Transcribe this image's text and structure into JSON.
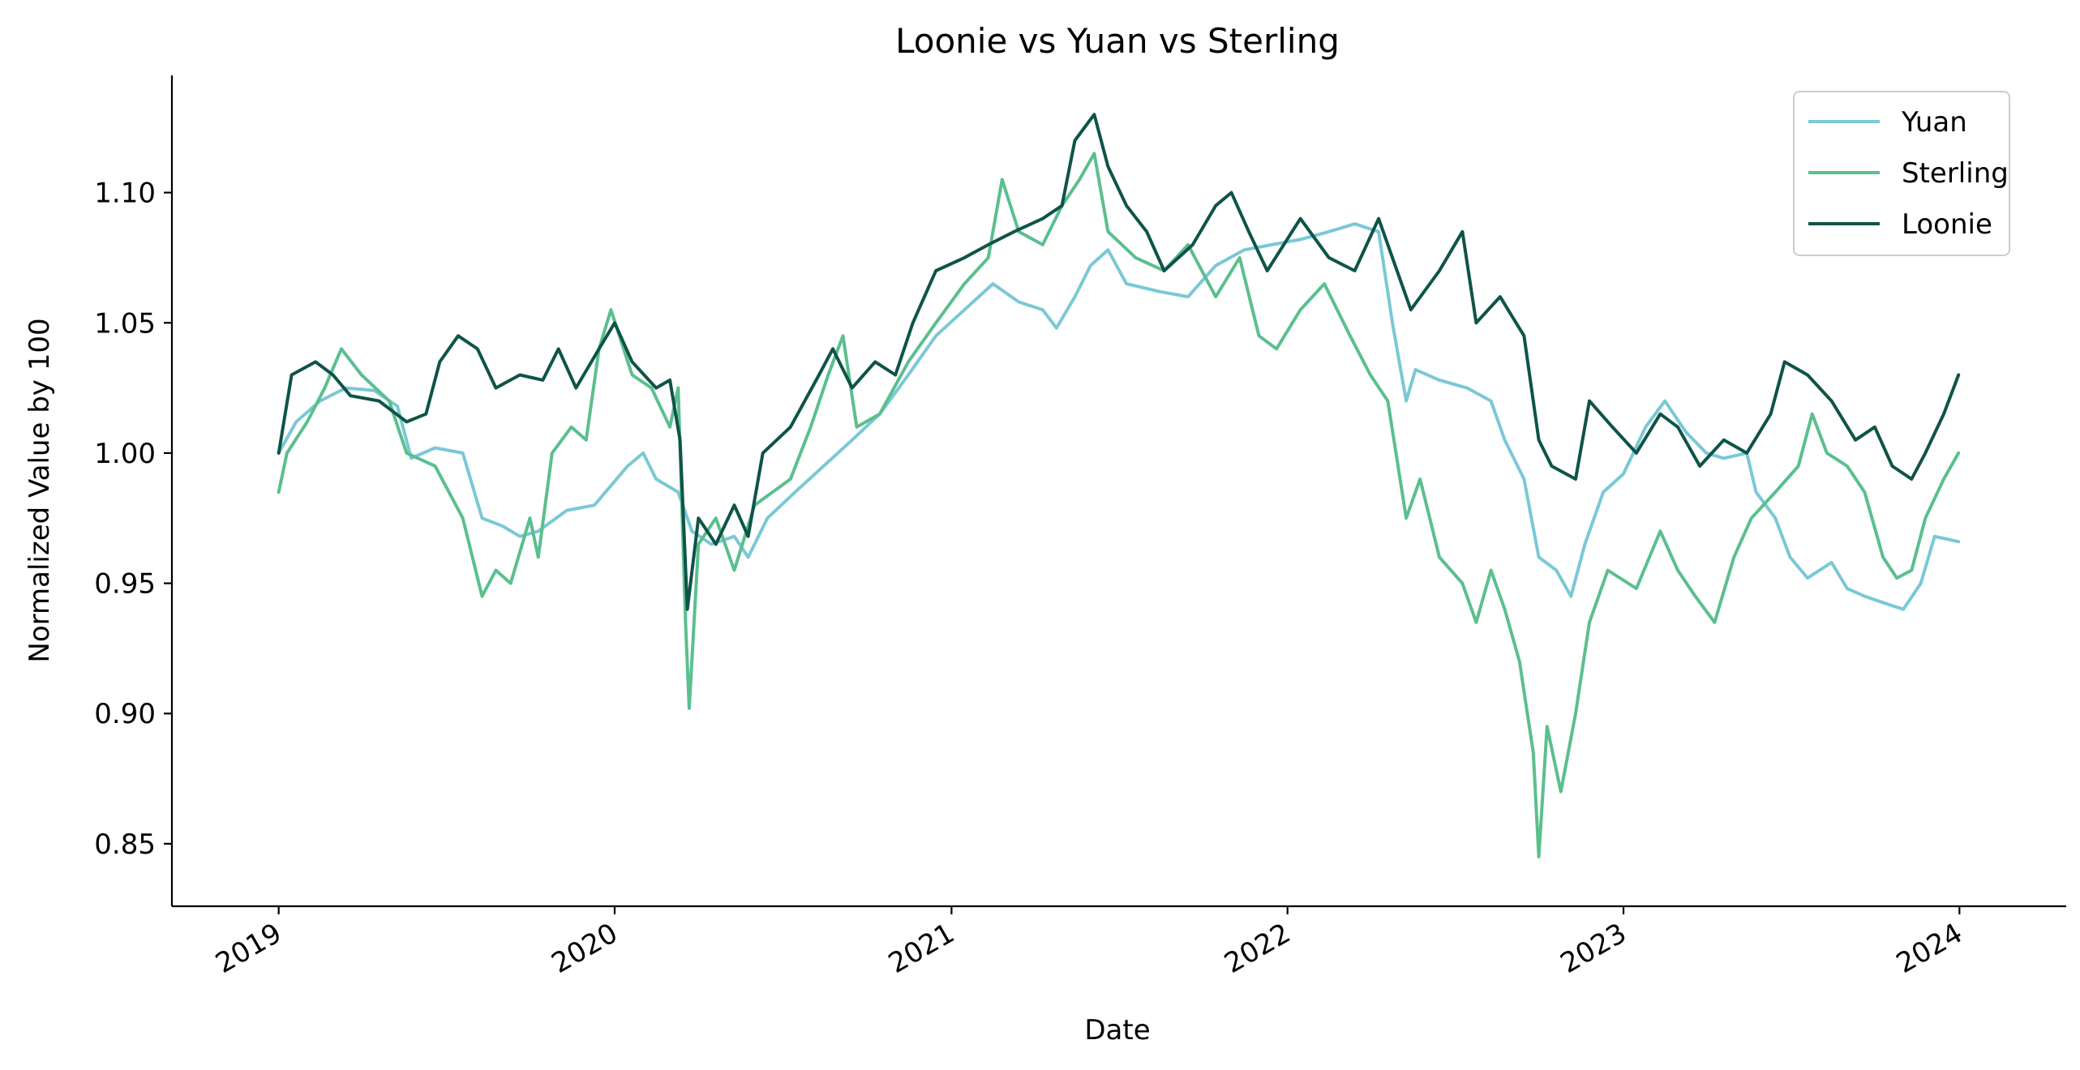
{
  "chart_data": {
    "type": "line",
    "title": "Loonie vs Yuan vs Sterling",
    "xlabel": "Date",
    "ylabel": "Normalized Value by 100",
    "x_axis": {
      "type": "date",
      "range": [
        "2018-09-07",
        "2024-04-26"
      ],
      "ticks": [
        "2019-01-01",
        "2020-01-01",
        "2021-01-01",
        "2022-01-01",
        "2023-01-01",
        "2024-01-01"
      ],
      "tick_labels": [
        "2019",
        "2020",
        "2021",
        "2022",
        "2023",
        "2024"
      ]
    },
    "y_axis": {
      "range": [
        0.826,
        1.145
      ],
      "ticks": [
        0.85,
        0.9,
        0.95,
        1.0,
        1.05,
        1.1
      ],
      "tick_labels": [
        "0.85",
        "0.90",
        "0.95",
        "1.00",
        "1.05",
        "1.10"
      ]
    },
    "grid": false,
    "legend_position": "top-right",
    "series": [
      {
        "name": "Yuan",
        "color": "#7bc8d6",
        "points": [
          [
            "2019-01-01",
            1.0
          ],
          [
            "2019-01-20",
            1.012
          ],
          [
            "2019-02-15",
            1.02
          ],
          [
            "2019-03-15",
            1.025
          ],
          [
            "2019-04-15",
            1.024
          ],
          [
            "2019-05-10",
            1.018
          ],
          [
            "2019-05-25",
            0.998
          ],
          [
            "2019-06-20",
            1.002
          ],
          [
            "2019-07-20",
            1.0
          ],
          [
            "2019-08-10",
            0.975
          ],
          [
            "2019-09-01",
            0.972
          ],
          [
            "2019-09-20",
            0.968
          ],
          [
            "2019-10-10",
            0.97
          ],
          [
            "2019-11-10",
            0.978
          ],
          [
            "2019-12-10",
            0.98
          ],
          [
            "2020-01-15",
            0.995
          ],
          [
            "2020-02-01",
            1.0
          ],
          [
            "2020-02-15",
            0.99
          ],
          [
            "2020-03-10",
            0.985
          ],
          [
            "2020-03-25",
            0.97
          ],
          [
            "2020-04-15",
            0.965
          ],
          [
            "2020-05-10",
            0.968
          ],
          [
            "2020-05-25",
            0.96
          ],
          [
            "2020-06-15",
            0.975
          ],
          [
            "2020-07-15",
            0.985
          ],
          [
            "2020-08-15",
            0.995
          ],
          [
            "2020-09-15",
            1.005
          ],
          [
            "2020-10-15",
            1.015
          ],
          [
            "2020-11-15",
            1.03
          ],
          [
            "2020-12-15",
            1.045
          ],
          [
            "2021-01-15",
            1.055
          ],
          [
            "2021-02-15",
            1.065
          ],
          [
            "2021-03-15",
            1.058
          ],
          [
            "2021-04-10",
            1.055
          ],
          [
            "2021-04-25",
            1.048
          ],
          [
            "2021-05-15",
            1.06
          ],
          [
            "2021-06-01",
            1.072
          ],
          [
            "2021-06-20",
            1.078
          ],
          [
            "2021-07-10",
            1.065
          ],
          [
            "2021-08-15",
            1.062
          ],
          [
            "2021-09-15",
            1.06
          ],
          [
            "2021-10-15",
            1.072
          ],
          [
            "2021-11-15",
            1.078
          ],
          [
            "2021-12-15",
            1.08
          ],
          [
            "2022-01-15",
            1.082
          ],
          [
            "2022-02-15",
            1.085
          ],
          [
            "2022-03-15",
            1.088
          ],
          [
            "2022-04-10",
            1.085
          ],
          [
            "2022-04-25",
            1.05
          ],
          [
            "2022-05-10",
            1.02
          ],
          [
            "2022-05-20",
            1.032
          ],
          [
            "2022-06-15",
            1.028
          ],
          [
            "2022-07-15",
            1.025
          ],
          [
            "2022-08-10",
            1.02
          ],
          [
            "2022-08-25",
            1.005
          ],
          [
            "2022-09-15",
            0.99
          ],
          [
            "2022-10-01",
            0.96
          ],
          [
            "2022-10-20",
            0.955
          ],
          [
            "2022-11-05",
            0.945
          ],
          [
            "2022-11-20",
            0.965
          ],
          [
            "2022-12-10",
            0.985
          ],
          [
            "2023-01-01",
            0.992
          ],
          [
            "2023-01-25",
            1.01
          ],
          [
            "2023-02-15",
            1.02
          ],
          [
            "2023-03-10",
            1.008
          ],
          [
            "2023-04-01",
            1.0
          ],
          [
            "2023-04-20",
            0.998
          ],
          [
            "2023-05-15",
            1.0
          ],
          [
            "2023-05-25",
            0.985
          ],
          [
            "2023-06-15",
            0.975
          ],
          [
            "2023-07-01",
            0.96
          ],
          [
            "2023-07-20",
            0.952
          ],
          [
            "2023-08-15",
            0.958
          ],
          [
            "2023-09-01",
            0.948
          ],
          [
            "2023-09-20",
            0.945
          ],
          [
            "2023-10-15",
            0.942
          ],
          [
            "2023-11-01",
            0.94
          ],
          [
            "2023-11-20",
            0.95
          ],
          [
            "2023-12-05",
            0.968
          ],
          [
            "2023-12-31",
            0.966
          ]
        ]
      },
      {
        "name": "Sterling",
        "color": "#5bbf8e",
        "points": [
          [
            "2019-01-01",
            0.985
          ],
          [
            "2019-01-10",
            1.0
          ],
          [
            "2019-02-01",
            1.012
          ],
          [
            "2019-02-20",
            1.025
          ],
          [
            "2019-03-10",
            1.04
          ],
          [
            "2019-04-01",
            1.03
          ],
          [
            "2019-05-01",
            1.02
          ],
          [
            "2019-05-20",
            1.0
          ],
          [
            "2019-06-20",
            0.995
          ],
          [
            "2019-07-20",
            0.975
          ],
          [
            "2019-08-10",
            0.945
          ],
          [
            "2019-08-25",
            0.955
          ],
          [
            "2019-09-10",
            0.95
          ],
          [
            "2019-10-01",
            0.975
          ],
          [
            "2019-10-10",
            0.96
          ],
          [
            "2019-10-25",
            1.0
          ],
          [
            "2019-11-15",
            1.01
          ],
          [
            "2019-12-01",
            1.005
          ],
          [
            "2019-12-15",
            1.04
          ],
          [
            "2019-12-28",
            1.055
          ],
          [
            "2020-01-20",
            1.03
          ],
          [
            "2020-02-10",
            1.025
          ],
          [
            "2020-03-01",
            1.01
          ],
          [
            "2020-03-10",
            1.025
          ],
          [
            "2020-03-18",
            0.935
          ],
          [
            "2020-03-22",
            0.902
          ],
          [
            "2020-04-01",
            0.965
          ],
          [
            "2020-04-20",
            0.975
          ],
          [
            "2020-05-10",
            0.955
          ],
          [
            "2020-06-01",
            0.98
          ],
          [
            "2020-07-10",
            0.99
          ],
          [
            "2020-08-01",
            1.01
          ],
          [
            "2020-08-20",
            1.03
          ],
          [
            "2020-09-05",
            1.045
          ],
          [
            "2020-09-20",
            1.01
          ],
          [
            "2020-10-15",
            1.015
          ],
          [
            "2020-11-15",
            1.035
          ],
          [
            "2020-12-15",
            1.05
          ],
          [
            "2021-01-15",
            1.065
          ],
          [
            "2021-02-10",
            1.075
          ],
          [
            "2021-02-25",
            1.105
          ],
          [
            "2021-03-15",
            1.085
          ],
          [
            "2021-04-10",
            1.08
          ],
          [
            "2021-05-01",
            1.095
          ],
          [
            "2021-05-20",
            1.105
          ],
          [
            "2021-06-05",
            1.115
          ],
          [
            "2021-06-20",
            1.085
          ],
          [
            "2021-07-20",
            1.075
          ],
          [
            "2021-08-20",
            1.07
          ],
          [
            "2021-09-15",
            1.08
          ],
          [
            "2021-10-15",
            1.06
          ],
          [
            "2021-11-10",
            1.075
          ],
          [
            "2021-12-01",
            1.045
          ],
          [
            "2021-12-20",
            1.04
          ],
          [
            "2022-01-15",
            1.055
          ],
          [
            "2022-02-10",
            1.065
          ],
          [
            "2022-03-10",
            1.045
          ],
          [
            "2022-04-01",
            1.03
          ],
          [
            "2022-04-20",
            1.02
          ],
          [
            "2022-05-10",
            0.975
          ],
          [
            "2022-05-25",
            0.99
          ],
          [
            "2022-06-15",
            0.96
          ],
          [
            "2022-07-10",
            0.95
          ],
          [
            "2022-07-25",
            0.935
          ],
          [
            "2022-08-10",
            0.955
          ],
          [
            "2022-08-25",
            0.94
          ],
          [
            "2022-09-10",
            0.92
          ],
          [
            "2022-09-25",
            0.885
          ],
          [
            "2022-10-01",
            0.845
          ],
          [
            "2022-10-10",
            0.895
          ],
          [
            "2022-10-25",
            0.87
          ],
          [
            "2022-11-10",
            0.9
          ],
          [
            "2022-11-25",
            0.935
          ],
          [
            "2022-12-15",
            0.955
          ],
          [
            "2023-01-15",
            0.948
          ],
          [
            "2023-02-10",
            0.97
          ],
          [
            "2023-03-01",
            0.955
          ],
          [
            "2023-03-20",
            0.945
          ],
          [
            "2023-04-10",
            0.935
          ],
          [
            "2023-05-01",
            0.96
          ],
          [
            "2023-05-20",
            0.975
          ],
          [
            "2023-06-15",
            0.985
          ],
          [
            "2023-07-10",
            0.995
          ],
          [
            "2023-07-25",
            1.015
          ],
          [
            "2023-08-10",
            1.0
          ],
          [
            "2023-09-01",
            0.995
          ],
          [
            "2023-09-20",
            0.985
          ],
          [
            "2023-10-10",
            0.96
          ],
          [
            "2023-10-25",
            0.952
          ],
          [
            "2023-11-10",
            0.955
          ],
          [
            "2023-11-25",
            0.975
          ],
          [
            "2023-12-15",
            0.99
          ],
          [
            "2023-12-31",
            1.0
          ]
        ]
      },
      {
        "name": "Loonie",
        "color": "#0e5448",
        "points": [
          [
            "2019-01-01",
            1.0
          ],
          [
            "2019-01-15",
            1.03
          ],
          [
            "2019-02-10",
            1.035
          ],
          [
            "2019-03-01",
            1.03
          ],
          [
            "2019-03-20",
            1.022
          ],
          [
            "2019-04-20",
            1.02
          ],
          [
            "2019-05-20",
            1.012
          ],
          [
            "2019-06-10",
            1.015
          ],
          [
            "2019-06-25",
            1.035
          ],
          [
            "2019-07-15",
            1.045
          ],
          [
            "2019-08-05",
            1.04
          ],
          [
            "2019-08-25",
            1.025
          ],
          [
            "2019-09-20",
            1.03
          ],
          [
            "2019-10-15",
            1.028
          ],
          [
            "2019-11-01",
            1.04
          ],
          [
            "2019-11-20",
            1.025
          ],
          [
            "2019-12-15",
            1.04
          ],
          [
            "2020-01-01",
            1.05
          ],
          [
            "2020-01-20",
            1.035
          ],
          [
            "2020-02-15",
            1.025
          ],
          [
            "2020-03-01",
            1.028
          ],
          [
            "2020-03-12",
            1.005
          ],
          [
            "2020-03-20",
            0.94
          ],
          [
            "2020-04-01",
            0.975
          ],
          [
            "2020-04-20",
            0.965
          ],
          [
            "2020-05-10",
            0.98
          ],
          [
            "2020-05-25",
            0.968
          ],
          [
            "2020-06-10",
            1.0
          ],
          [
            "2020-07-10",
            1.01
          ],
          [
            "2020-08-10",
            1.03
          ],
          [
            "2020-08-25",
            1.04
          ],
          [
            "2020-09-15",
            1.025
          ],
          [
            "2020-10-10",
            1.035
          ],
          [
            "2020-11-01",
            1.03
          ],
          [
            "2020-11-20",
            1.05
          ],
          [
            "2020-12-15",
            1.07
          ],
          [
            "2021-01-15",
            1.075
          ],
          [
            "2021-02-10",
            1.08
          ],
          [
            "2021-03-10",
            1.085
          ],
          [
            "2021-04-10",
            1.09
          ],
          [
            "2021-05-01",
            1.095
          ],
          [
            "2021-05-15",
            1.12
          ],
          [
            "2021-06-05",
            1.13
          ],
          [
            "2021-06-20",
            1.11
          ],
          [
            "2021-07-10",
            1.095
          ],
          [
            "2021-08-01",
            1.085
          ],
          [
            "2021-08-20",
            1.07
          ],
          [
            "2021-09-20",
            1.08
          ],
          [
            "2021-10-15",
            1.095
          ],
          [
            "2021-11-01",
            1.1
          ],
          [
            "2021-11-20",
            1.085
          ],
          [
            "2021-12-10",
            1.07
          ],
          [
            "2022-01-15",
            1.09
          ],
          [
            "2022-02-15",
            1.075
          ],
          [
            "2022-03-15",
            1.07
          ],
          [
            "2022-04-10",
            1.09
          ],
          [
            "2022-04-25",
            1.075
          ],
          [
            "2022-05-15",
            1.055
          ],
          [
            "2022-06-15",
            1.07
          ],
          [
            "2022-07-10",
            1.085
          ],
          [
            "2022-07-25",
            1.05
          ],
          [
            "2022-08-20",
            1.06
          ],
          [
            "2022-09-15",
            1.045
          ],
          [
            "2022-10-01",
            1.005
          ],
          [
            "2022-10-15",
            0.995
          ],
          [
            "2022-11-10",
            0.99
          ],
          [
            "2022-11-25",
            1.02
          ],
          [
            "2022-12-20",
            1.01
          ],
          [
            "2023-01-15",
            1.0
          ],
          [
            "2023-02-10",
            1.015
          ],
          [
            "2023-03-01",
            1.01
          ],
          [
            "2023-03-25",
            0.995
          ],
          [
            "2023-04-20",
            1.005
          ],
          [
            "2023-05-15",
            1.0
          ],
          [
            "2023-06-10",
            1.015
          ],
          [
            "2023-06-25",
            1.035
          ],
          [
            "2023-07-20",
            1.03
          ],
          [
            "2023-08-15",
            1.02
          ],
          [
            "2023-09-10",
            1.005
          ],
          [
            "2023-10-01",
            1.01
          ],
          [
            "2023-10-20",
            0.995
          ],
          [
            "2023-11-10",
            0.99
          ],
          [
            "2023-11-25",
            1.0
          ],
          [
            "2023-12-15",
            1.015
          ],
          [
            "2023-12-31",
            1.03
          ]
        ]
      }
    ]
  }
}
